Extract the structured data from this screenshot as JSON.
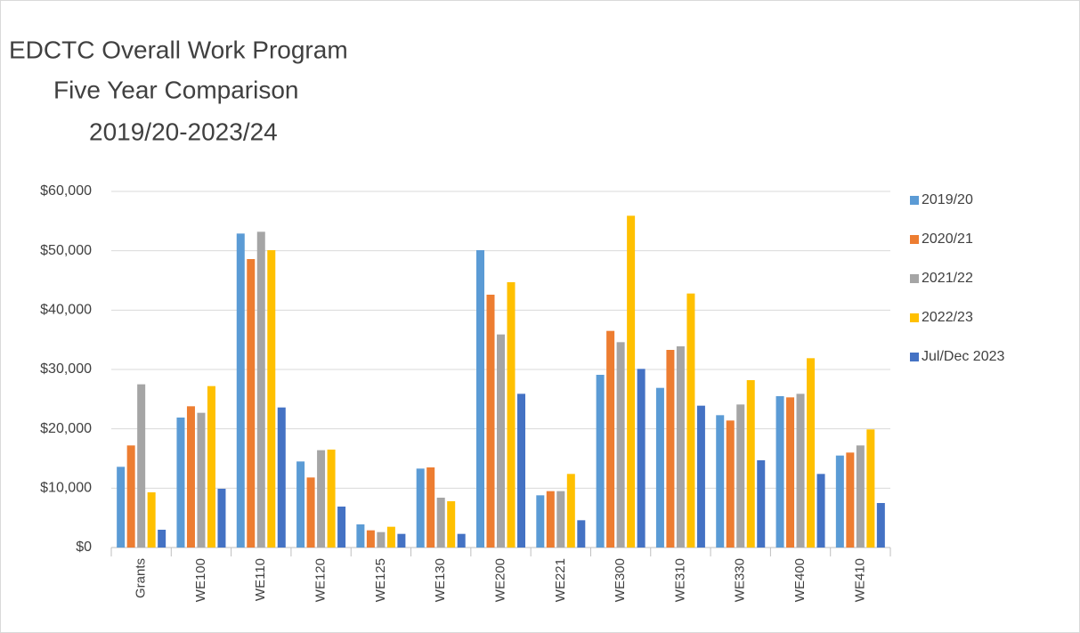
{
  "chart_data": {
    "type": "bar",
    "title": [
      "EDCTC Overall Work Program",
      "Five Year Comparison",
      "2019/20-2023/24"
    ],
    "categories": [
      "Grants",
      "WE100",
      "WE110",
      "WE120",
      "WE125",
      "WE130",
      "WE200",
      "WE221",
      "WE300",
      "WE310",
      "WE330",
      "WE400",
      "WE410"
    ],
    "series": [
      {
        "name": "2019/20",
        "color": "#5b9bd5",
        "values": [
          13600,
          21900,
          52900,
          14500,
          3900,
          13300,
          50100,
          8800,
          29100,
          26900,
          22300,
          25500,
          15500
        ]
      },
      {
        "name": "2020/21",
        "color": "#ed7d31",
        "values": [
          17200,
          23800,
          48600,
          11800,
          2900,
          13500,
          42600,
          9500,
          36500,
          33300,
          21400,
          25300,
          16000
        ]
      },
      {
        "name": "2021/22",
        "color": "#a5a5a5",
        "values": [
          27500,
          22700,
          53200,
          16400,
          2600,
          8400,
          35900,
          9500,
          34600,
          33900,
          24100,
          25900,
          17200
        ]
      },
      {
        "name": "2022/23",
        "color": "#ffc000",
        "values": [
          9300,
          27200,
          50100,
          16500,
          3500,
          7800,
          44700,
          12400,
          55900,
          42800,
          28200,
          31900,
          19900
        ]
      },
      {
        "name": "Jul/Dec 2023",
        "color": "#4472c4",
        "values": [
          3000,
          9900,
          23600,
          6900,
          2300,
          2300,
          25900,
          4600,
          30100,
          23900,
          14700,
          12400,
          7500
        ]
      }
    ],
    "ylim": [
      0,
      60000
    ],
    "yticks": [
      {
        "value": 0,
        "label": "$0"
      },
      {
        "value": 10000,
        "label": "$10,000"
      },
      {
        "value": 20000,
        "label": "$20,000"
      },
      {
        "value": 30000,
        "label": "$30,000"
      },
      {
        "value": 40000,
        "label": "$40,000"
      },
      {
        "value": 50000,
        "label": "$50,000"
      },
      {
        "value": 60000,
        "label": "$60,000"
      }
    ],
    "grid": true,
    "legend": "right"
  }
}
